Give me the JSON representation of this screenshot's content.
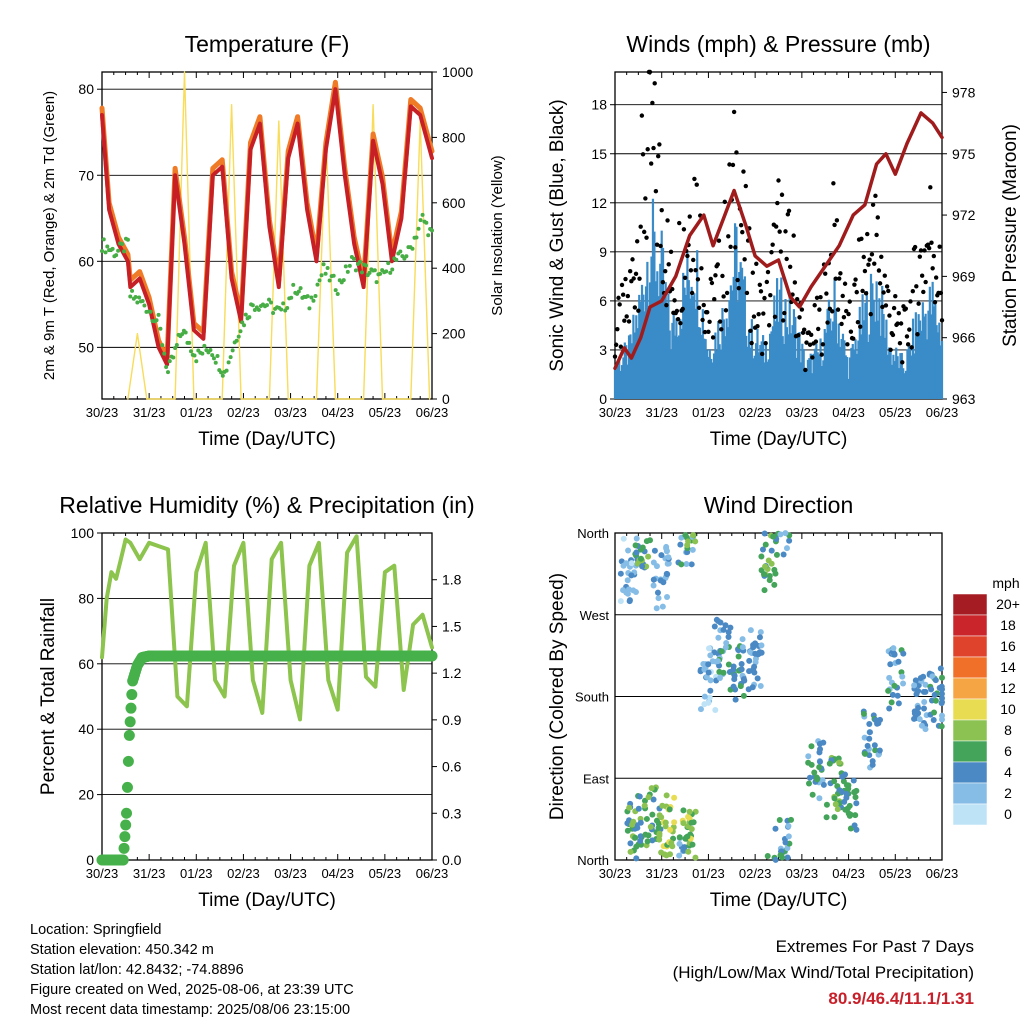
{
  "time_ticks": [
    "30/23",
    "31/23",
    "01/23",
    "02/23",
    "03/23",
    "04/23",
    "05/23",
    "06/23"
  ],
  "temperature_panel": {
    "title": "Temperature (F)",
    "xlabel": "Time (Day/UTC)",
    "ylabel_left": "2m & 9m T (Red, Orange) & 2m Td (Green)",
    "ylabel_right": "Solar Insolation (Yellow)"
  },
  "wind_panel": {
    "title": "Winds (mph) & Pressure (mb)",
    "xlabel": "Time (Day/UTC)",
    "ylabel_left": "Sonic Wind & Gust (Blue, Black)",
    "ylabel_right": "Station Pressure (Maroon)"
  },
  "humidity_panel": {
    "title": "Relative Humidity (%) & Precipitation (in)",
    "xlabel": "Time (Day/UTC)",
    "ylabel_left": "Percent & Total Rainfall"
  },
  "direction_panel": {
    "title": "Wind Direction",
    "xlabel": "Time (Day/UTC)",
    "ylabel_left": "Direction (Colored By Speed)",
    "legend_title": "mph",
    "legend_labels": [
      "20+",
      "18",
      "16",
      "14",
      "12",
      "10",
      "8",
      "6",
      "4",
      "2",
      "0"
    ],
    "legend_colors": [
      "#a51d23",
      "#c9252b",
      "#e0432b",
      "#f0702a",
      "#f6a545",
      "#e8dc52",
      "#8cc251",
      "#44a45a",
      "#4a89c4",
      "#86bde6",
      "#bfe3f6"
    ]
  },
  "info": {
    "location": "Location: Springfield",
    "elevation": "Station elevation: 450.342 m",
    "latlon": "Station lat/lon: 42.8432; -74.8896",
    "created": "Figure created on Wed, 2025-08-06, at 23:39 UTC",
    "recent": "Most recent data timestamp: 2025/08/06 23:15:00"
  },
  "extremes": {
    "line1": "Extremes For Past 7 Days",
    "line2": "(High/Low/Max Wind/Total Precipitation)",
    "values": "80.9/46.4/11.1/1.31"
  },
  "chart_data": [
    {
      "type": "line",
      "title": "Temperature (F)",
      "xlabel": "Time (Day/UTC)",
      "ylabel": "2m & 9m T (Red, Orange) & 2m Td (Green)",
      "y2label": "Solar Insolation (Yellow)",
      "xlim": [
        0,
        7
      ],
      "ylim": [
        44,
        82
      ],
      "y2lim": [
        0,
        1000
      ],
      "yticks": [
        50,
        60,
        70,
        80
      ],
      "y2ticks": [
        0,
        200,
        400,
        600,
        800,
        1000
      ],
      "grid": true,
      "colors": {
        "temp2m": "#c62026",
        "temp9m": "#f07b26",
        "dewpoint": "#47ad45",
        "solar": "#f8dc5a"
      },
      "series": [
        {
          "name": "2m T",
          "axis": "left",
          "x": [
            0,
            0.15,
            0.35,
            0.55,
            0.6,
            0.8,
            1.0,
            1.2,
            1.38,
            1.55,
            1.75,
            1.95,
            2.15,
            2.35,
            2.55,
            2.75,
            2.95,
            3.15,
            3.35,
            3.55,
            3.75,
            3.95,
            4.15,
            4.35,
            4.55,
            4.75,
            4.95,
            5.15,
            5.35,
            5.55,
            5.75,
            5.95,
            6.15,
            6.35,
            6.55,
            6.75,
            6.95,
            7.0
          ],
          "y": [
            77,
            66,
            62,
            60,
            57,
            58,
            55,
            50,
            48,
            70,
            62,
            52,
            51,
            70,
            71,
            58,
            53,
            73,
            76,
            64,
            57,
            72,
            76,
            66,
            60,
            73,
            80,
            70,
            62,
            57,
            74,
            69,
            60,
            65,
            78,
            77,
            73,
            72
          ]
        },
        {
          "name": "Td",
          "axis": "left",
          "x": [
            0,
            0.3,
            0.55,
            0.6,
            0.9,
            1.2,
            1.4,
            1.7,
            2.0,
            2.3,
            2.6,
            2.9,
            3.2,
            3.5,
            3.8,
            4.1,
            4.4,
            4.7,
            5.0,
            5.3,
            5.6,
            5.9,
            6.2,
            6.5,
            6.8,
            7.0
          ],
          "y": [
            62,
            61,
            62,
            56,
            55,
            53,
            47,
            52,
            49,
            50,
            47,
            52,
            55,
            55,
            54,
            57,
            55,
            59,
            57,
            60,
            59,
            58,
            60,
            61,
            65,
            63
          ]
        },
        {
          "name": "Solar",
          "axis": "right",
          "x": [
            0.55,
            0.75,
            0.95,
            1.55,
            1.75,
            1.95,
            2.55,
            2.75,
            2.95,
            3.55,
            3.75,
            3.95,
            4.55,
            4.75,
            4.95,
            5.55,
            5.75,
            5.95,
            6.55,
            6.75,
            6.95
          ],
          "y": [
            0,
            200,
            0,
            0,
            1000,
            0,
            0,
            900,
            0,
            0,
            850,
            0,
            0,
            820,
            0,
            0,
            900,
            0,
            0,
            850,
            0
          ]
        }
      ]
    },
    {
      "type": "line",
      "title": "Winds (mph) & Pressure (mb)",
      "xlabel": "Time (Day/UTC)",
      "ylabel": "Sonic Wind & Gust (Blue, Black)",
      "y2label": "Station Pressure (Maroon)",
      "xlim": [
        0,
        7
      ],
      "ylim": [
        0,
        20
      ],
      "y2lim": [
        963,
        979
      ],
      "yticks": [
        0,
        3,
        6,
        9,
        12,
        15,
        18
      ],
      "y2ticks": [
        963,
        966,
        969,
        972,
        975,
        978
      ],
      "grid": true,
      "colors": {
        "wind": "#3a8cc8",
        "gust": "#000000",
        "pressure": "#a01c1c"
      },
      "series": [
        {
          "name": "Pressure",
          "axis": "right",
          "x": [
            0,
            0.2,
            0.35,
            0.55,
            0.75,
            1.0,
            1.3,
            1.6,
            1.9,
            2.1,
            2.35,
            2.55,
            2.8,
            3.0,
            3.25,
            3.5,
            3.75,
            3.95,
            4.2,
            4.5,
            4.8,
            5.1,
            5.35,
            5.6,
            5.8,
            6.0,
            6.25,
            6.55,
            6.8,
            7.0
          ],
          "y": [
            964.5,
            965.5,
            965.0,
            966.0,
            967.5,
            967.8,
            969.0,
            971.0,
            972.0,
            970.5,
            972.0,
            973.2,
            971.5,
            970.0,
            969.5,
            969.8,
            968.0,
            967.5,
            968.5,
            969.5,
            970.5,
            972.0,
            972.5,
            974.5,
            975.0,
            974.0,
            975.5,
            977.0,
            976.5,
            975.8
          ]
        },
        {
          "name": "Wind",
          "axis": "left",
          "x": [
            0,
            0.3,
            0.55,
            0.75,
            1.0,
            1.2,
            1.4,
            1.7,
            2.0,
            2.3,
            2.6,
            2.9,
            3.2,
            3.5,
            3.8,
            4.1,
            4.4,
            4.7,
            5.0,
            5.3,
            5.6,
            5.9,
            6.2,
            6.5,
            6.8,
            7.0
          ],
          "y": [
            2,
            3,
            6,
            10,
            8,
            4,
            6,
            9,
            3,
            5,
            9,
            4,
            3,
            6,
            5,
            2,
            3,
            6,
            2,
            5,
            7,
            3,
            2,
            5,
            6,
            4
          ]
        },
        {
          "name": "Gust",
          "axis": "left",
          "x": [
            0,
            0.3,
            0.55,
            0.75,
            1.0,
            1.2,
            1.4,
            1.7,
            2.0,
            2.3,
            2.6,
            2.9,
            3.2,
            3.5,
            3.8,
            4.1,
            4.4,
            4.7,
            5.0,
            5.3,
            5.6,
            5.9,
            6.2,
            6.5,
            6.8,
            7.0
          ],
          "y": [
            4,
            6,
            12,
            16,
            12,
            7,
            9,
            13,
            5,
            8,
            14,
            7,
            5,
            10,
            8,
            3,
            5,
            10,
            4,
            8,
            10,
            5,
            4,
            8,
            11,
            6
          ]
        }
      ]
    },
    {
      "type": "line",
      "title": "Relative Humidity (%) & Precipitation (in)",
      "xlabel": "Time (Day/UTC)",
      "ylabel": "Percent & Total Rainfall",
      "xlim": [
        0,
        7
      ],
      "ylim": [
        0,
        100
      ],
      "y2lim": [
        0,
        2.1
      ],
      "yticks": [
        0,
        20,
        40,
        60,
        80,
        100
      ],
      "y2ticks": [
        0.0,
        0.3,
        0.6,
        0.9,
        1.2,
        1.5,
        1.8
      ],
      "grid": true,
      "colors": {
        "rh": "#8cc44e",
        "precip": "#46b14a"
      },
      "series": [
        {
          "name": "RH",
          "axis": "left",
          "x": [
            0,
            0.1,
            0.2,
            0.3,
            0.4,
            0.5,
            0.6,
            0.8,
            1.0,
            1.2,
            1.4,
            1.6,
            1.8,
            2.0,
            2.2,
            2.4,
            2.6,
            2.8,
            3.0,
            3.2,
            3.4,
            3.6,
            3.8,
            4.0,
            4.2,
            4.4,
            4.6,
            4.8,
            5.0,
            5.2,
            5.4,
            5.6,
            5.8,
            6.0,
            6.2,
            6.4,
            6.6,
            6.8,
            7.0
          ],
          "y": [
            62,
            80,
            88,
            86,
            92,
            98,
            97,
            92,
            97,
            96,
            95,
            50,
            47,
            88,
            97,
            55,
            50,
            90,
            97,
            55,
            45,
            92,
            97,
            55,
            43,
            90,
            97,
            55,
            46,
            94,
            99,
            56,
            53,
            88,
            90,
            52,
            72,
            75,
            65
          ]
        },
        {
          "name": "Precip",
          "axis": "right",
          "x": [
            0,
            0.45,
            0.52,
            0.58,
            0.65,
            0.75,
            0.85,
            1.0,
            1.15,
            1.3,
            7.0
          ],
          "y": [
            0,
            0,
            0.3,
            0.8,
            1.15,
            1.25,
            1.3,
            1.31,
            1.31,
            1.31,
            1.31
          ]
        }
      ]
    },
    {
      "type": "scatter",
      "title": "Wind Direction",
      "xlabel": "Time (Day/UTC)",
      "ylabel": "Direction (Colored By Speed)",
      "xlim": [
        0,
        7
      ],
      "ylim": [
        0,
        360
      ],
      "yticklabels": [
        "North",
        "East",
        "South",
        "West",
        "North"
      ],
      "grid": true,
      "legend_position": "right",
      "colorbar_title": "mph",
      "clusters": [
        {
          "x": 0.3,
          "dir": 320,
          "speed": 2
        },
        {
          "x": 0.4,
          "dir": 40,
          "speed": 6
        },
        {
          "x": 0.6,
          "dir": 355,
          "speed": 6
        },
        {
          "x": 0.8,
          "dir": 50,
          "speed": 6
        },
        {
          "x": 1.0,
          "dir": 310,
          "speed": 3
        },
        {
          "x": 1.1,
          "dir": 40,
          "speed": 8
        },
        {
          "x": 1.5,
          "dir": 355,
          "speed": 4
        },
        {
          "x": 1.6,
          "dir": 20,
          "speed": 8
        },
        {
          "x": 2.0,
          "dir": 200,
          "speed": 2
        },
        {
          "x": 2.3,
          "dir": 230,
          "speed": 4
        },
        {
          "x": 2.6,
          "dir": 210,
          "speed": 4
        },
        {
          "x": 3.0,
          "dir": 220,
          "speed": 3
        },
        {
          "x": 3.3,
          "dir": 330,
          "speed": 6
        },
        {
          "x": 3.6,
          "dir": 10,
          "speed": 4
        },
        {
          "x": 4.3,
          "dir": 100,
          "speed": 4
        },
        {
          "x": 4.7,
          "dir": 80,
          "speed": 6
        },
        {
          "x": 5.0,
          "dir": 60,
          "speed": 5
        },
        {
          "x": 5.5,
          "dir": 130,
          "speed": 4
        },
        {
          "x": 6.0,
          "dir": 200,
          "speed": 4
        },
        {
          "x": 6.5,
          "dir": 170,
          "speed": 3
        },
        {
          "x": 6.9,
          "dir": 180,
          "speed": 4
        }
      ]
    }
  ]
}
